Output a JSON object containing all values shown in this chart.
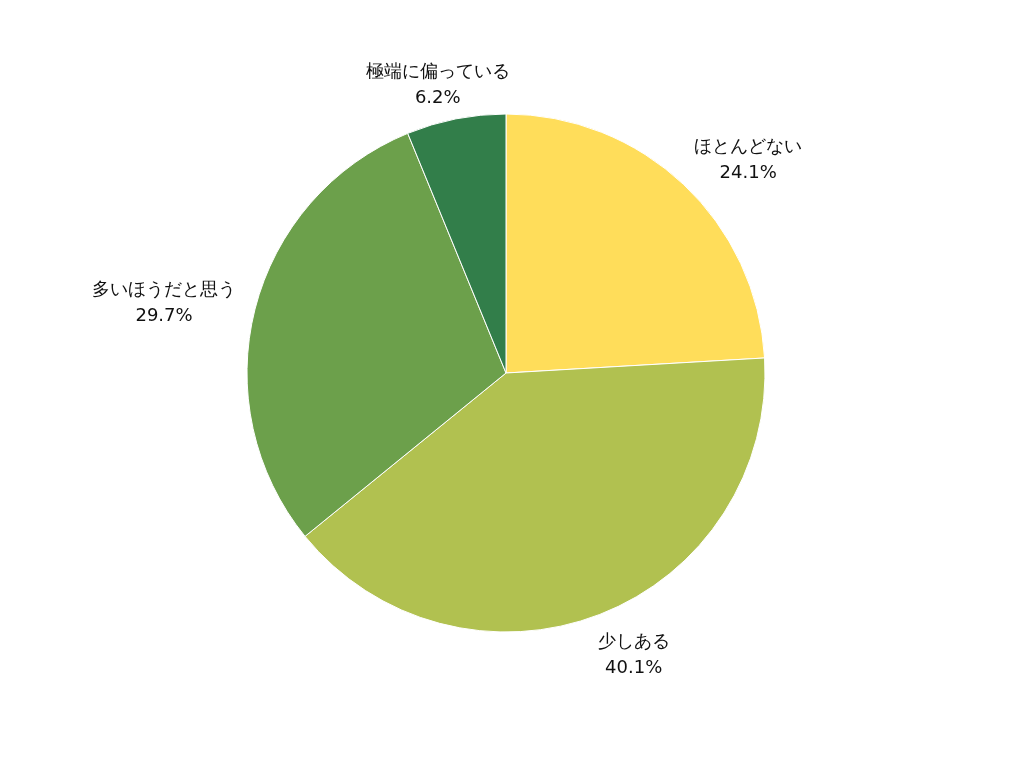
{
  "chart_data": {
    "type": "pie",
    "categories": [
      "ほとんどない",
      "少しある",
      "多いほうだと思う",
      "極端に偏っている"
    ],
    "values": [
      24.1,
      40.1,
      29.7,
      6.2
    ],
    "value_labels": [
      "24.1%",
      "40.1%",
      "29.7%",
      "6.2%"
    ],
    "colors": [
      "#ffdd5a",
      "#b1c150",
      "#6ca04b",
      "#327e4a"
    ]
  }
}
